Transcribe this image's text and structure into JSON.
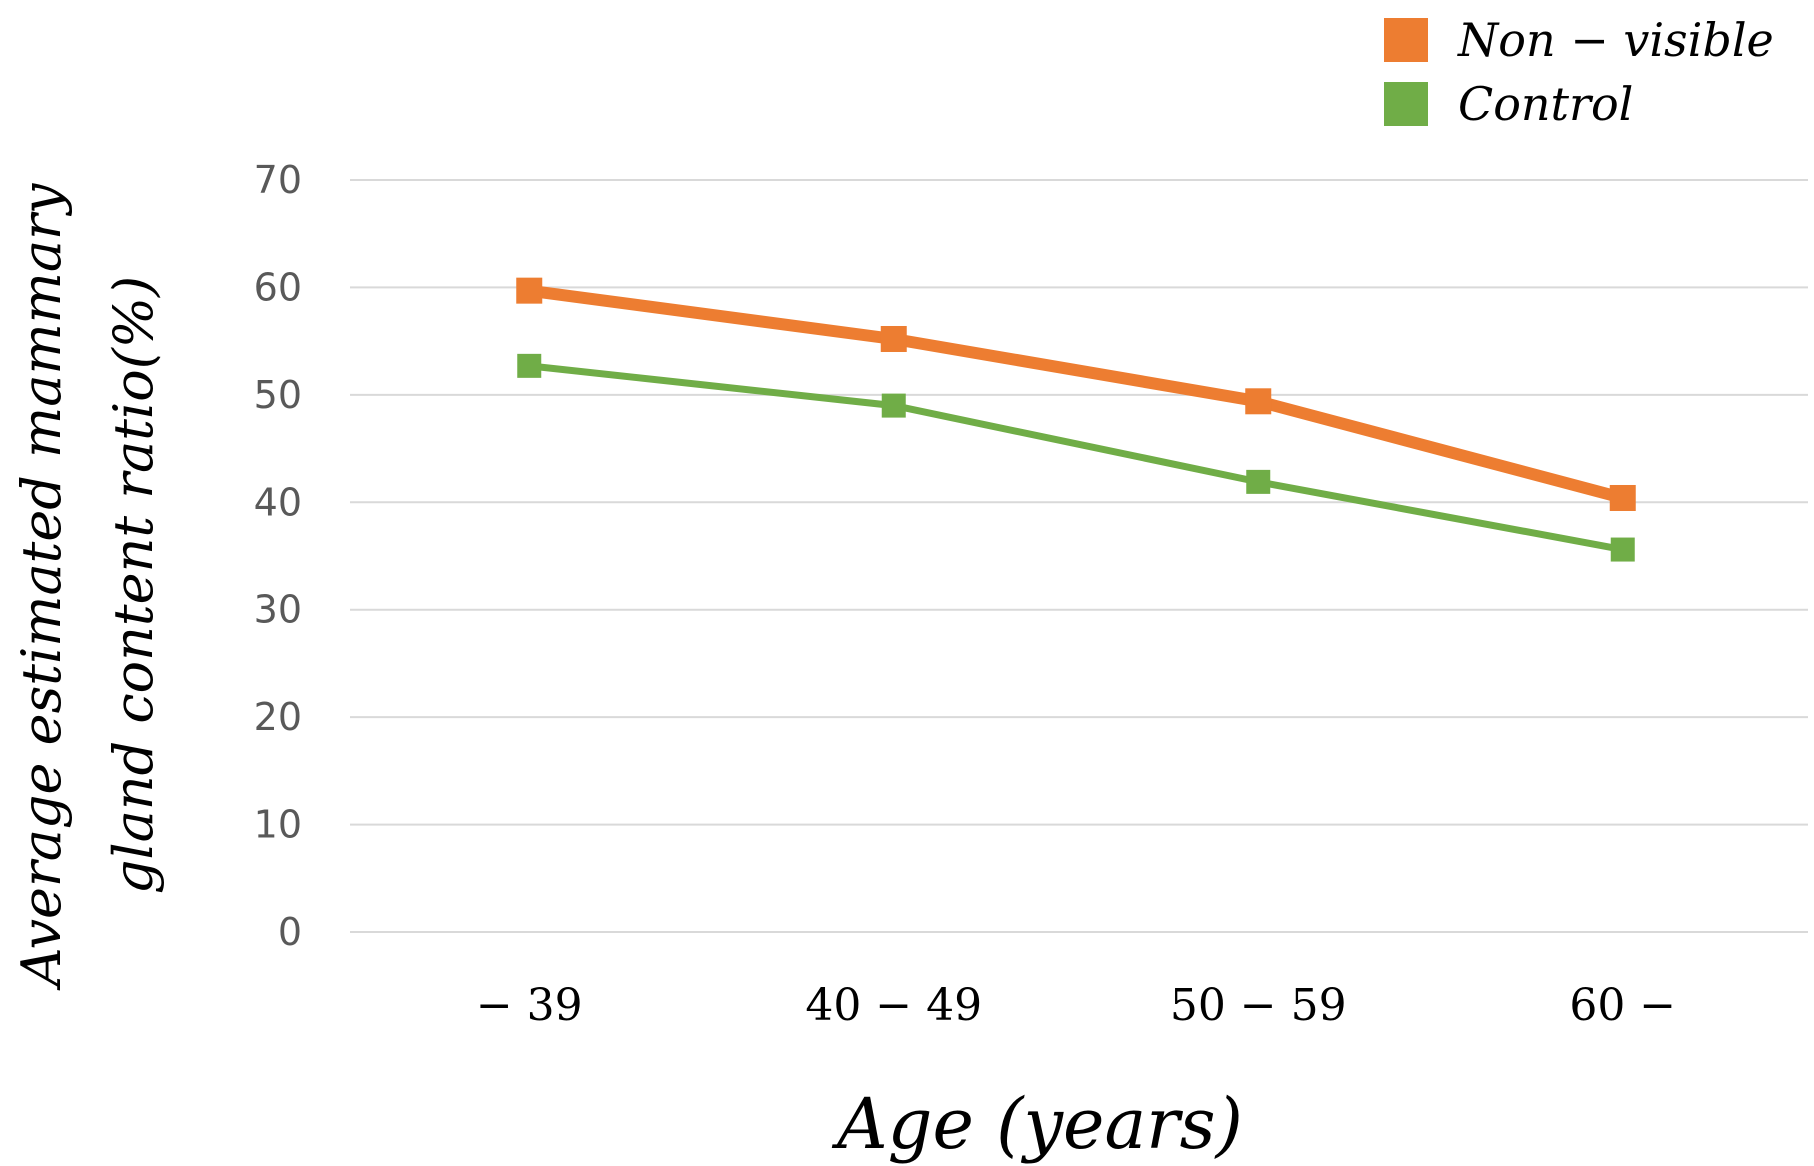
{
  "chart_data": {
    "type": "line",
    "categories": [
      "− 39",
      "40 − 49",
      "50 − 59",
      "60  −"
    ],
    "series": [
      {
        "name": "Non − visible",
        "values": [
          59.7,
          55.2,
          49.4,
          40.4
        ],
        "color": "#ED7D31"
      },
      {
        "name": "Control",
        "values": [
          52.7,
          49.0,
          41.9,
          35.6
        ],
        "color": "#70AD47"
      }
    ],
    "xlabel": "Age (years)",
    "ylabel_line1": "Average estimated mammary",
    "ylabel_line2": "gland content ratio(%)",
    "ylim": [
      0,
      70
    ],
    "yticks": [
      0,
      10,
      20,
      30,
      40,
      50,
      60,
      70
    ],
    "grid": true,
    "legend_position": "top-right",
    "gridline_color": "#D9D9D9"
  }
}
